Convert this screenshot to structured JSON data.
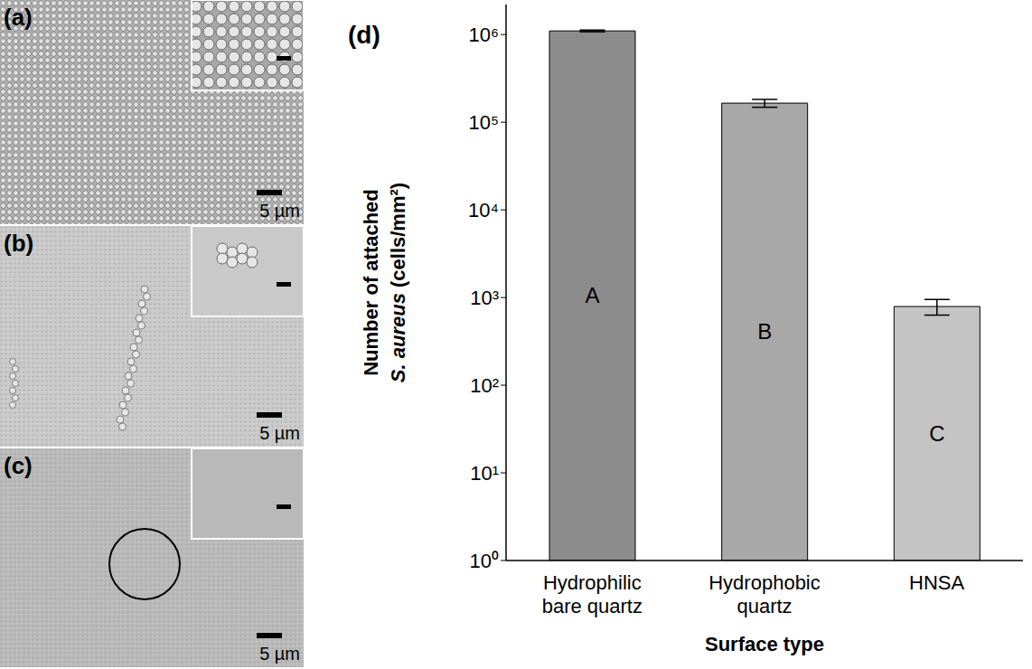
{
  "chart_data": {
    "type": "bar",
    "annotations": [
      "(d)"
    ],
    "ylabel": [
      "Number of attached",
      "S. aureus (cells/mm²)"
    ],
    "xlabel": "Surface type",
    "categories": [
      "Hydrophilic bare quartz",
      "Hydrophobic quartz",
      "HNSA"
    ],
    "values": [
      1100000,
      165000,
      790
    ],
    "error": [
      25000,
      17000,
      160
    ],
    "group_labels": [
      "A",
      "B",
      "C"
    ],
    "colors": [
      "#8c8c8c",
      "#a8a8a8",
      "#c4c4c4"
    ],
    "log": "y",
    "ylim": [
      1,
      2200000
    ],
    "yticks": [
      {
        "value": 1,
        "label": "10⁰"
      },
      {
        "value": 10,
        "label": "10¹"
      },
      {
        "value": 100,
        "label": "10²"
      },
      {
        "value": 1000,
        "label": "10³"
      },
      {
        "value": 10000,
        "label": "10⁴"
      },
      {
        "value": 100000,
        "label": "10⁵"
      },
      {
        "value": 1000000,
        "label": "10⁶"
      }
    ]
  },
  "micrographs": [
    {
      "label": "(a)",
      "scale_bar": "5 µm"
    },
    {
      "label": "(b)",
      "scale_bar": "5 µm"
    },
    {
      "label": "(c)",
      "scale_bar": "5 µm"
    }
  ]
}
